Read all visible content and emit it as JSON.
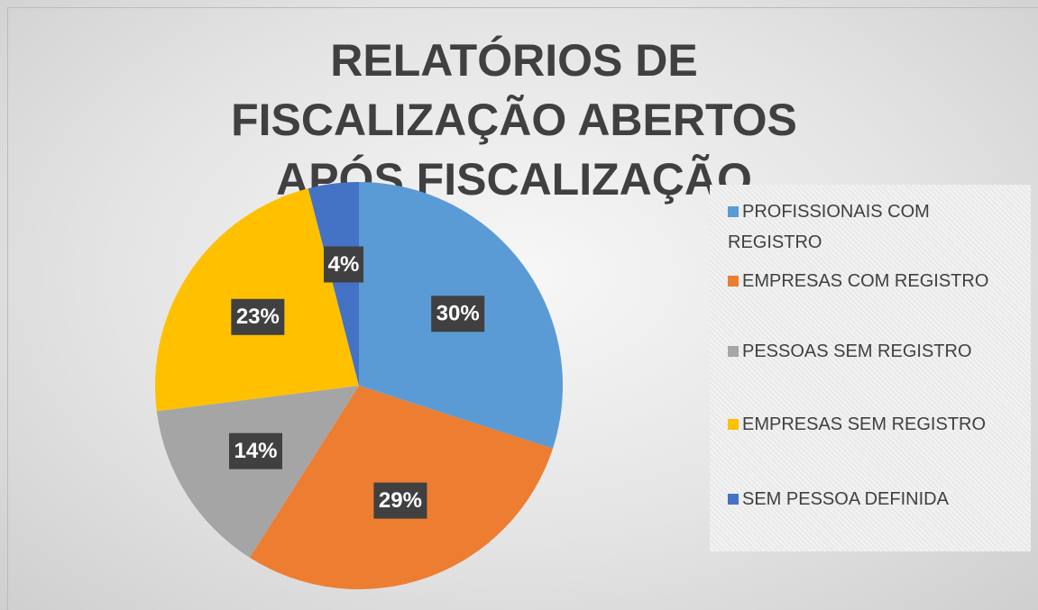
{
  "chart_data": {
    "type": "pie",
    "title": "RELATÓRIOS DE FISCALIZAÇÃO ABERTOS APÓS FISCALIZAÇÃO",
    "categories": [
      "PROFISSIONAIS COM REGISTRO",
      "EMPRESAS COM REGISTRO",
      "PESSOAS SEM REGISTRO",
      "EMPRESAS SEM REGISTRO",
      "SEM PESSOA DEFINIDA"
    ],
    "values": [
      30,
      29,
      14,
      23,
      4
    ],
    "value_labels": [
      "30%",
      "29%",
      "14%",
      "23%",
      "4%"
    ],
    "colors": [
      "#5b9bd5",
      "#ed7d31",
      "#a5a5a5",
      "#ffc000",
      "#4472c4"
    ],
    "legend": "right"
  }
}
